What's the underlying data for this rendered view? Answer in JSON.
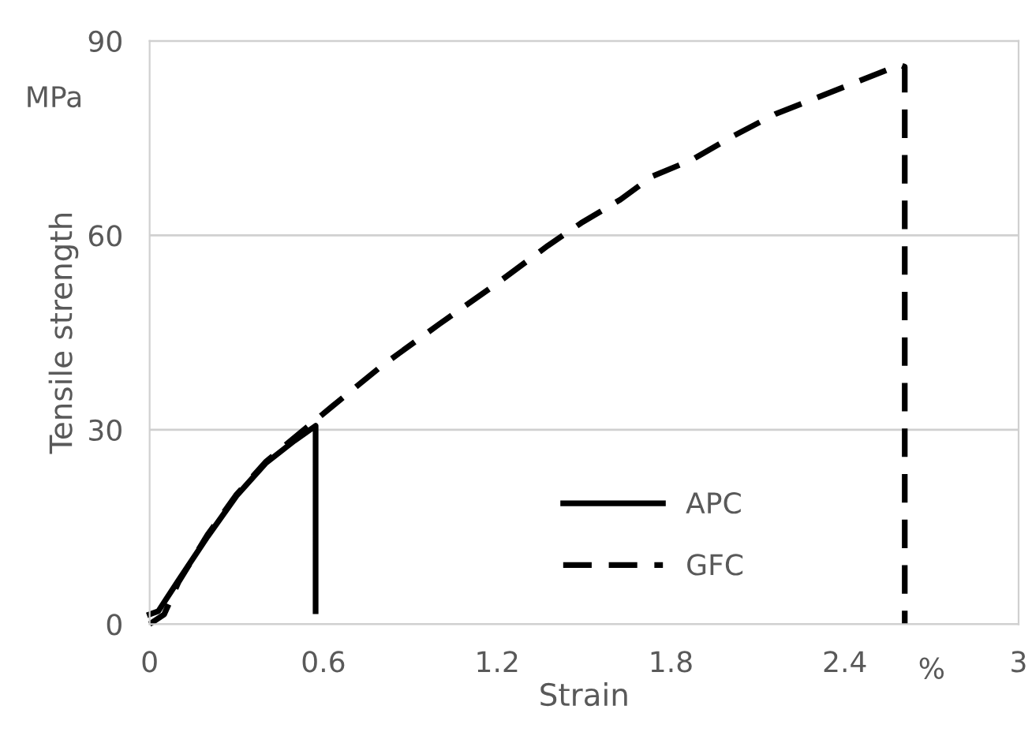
{
  "chart_data": {
    "type": "line",
    "xlabel": "Strain",
    "ylabel": "Tensile strength",
    "annotations": [
      "MPa",
      "%"
    ],
    "xlim": [
      0,
      3
    ],
    "xticks": [
      0,
      0.6,
      1.2,
      1.8,
      2.4,
      3
    ],
    "ylim": [
      0,
      90
    ],
    "yticks": [
      0,
      30,
      60,
      90
    ],
    "grid": "y",
    "legend": "bottom",
    "marker": "none",
    "series": [
      {
        "name": "APC",
        "color": "#000000",
        "line_style": "solid",
        "x": [
          0,
          0.03,
          0.1,
          0.2,
          0.3,
          0.4,
          0.5,
          0.573,
          0.573
        ],
        "values": [
          1.5,
          2,
          6.8,
          13.5,
          19.8,
          24.8,
          28.3,
          30.6,
          2
        ]
      },
      {
        "name": "GFC",
        "color": "#000000",
        "line_style": "dashed",
        "x": [
          0,
          0.05,
          0.1,
          0.2,
          0.3,
          0.4,
          0.5,
          0.633,
          0.8,
          1.0,
          1.2,
          1.375,
          1.49,
          1.625,
          1.735,
          1.87,
          2.01,
          2.16,
          2.307,
          2.59,
          2.607,
          2.607
        ],
        "values": [
          0,
          1.5,
          6.5,
          13.8,
          20,
          25,
          28.8,
          33.7,
          39.8,
          46.3,
          52.6,
          58.4,
          61.9,
          65.5,
          69.1,
          71.6,
          75.2,
          78.7,
          81.3,
          86.3,
          86,
          0
        ]
      }
    ]
  }
}
